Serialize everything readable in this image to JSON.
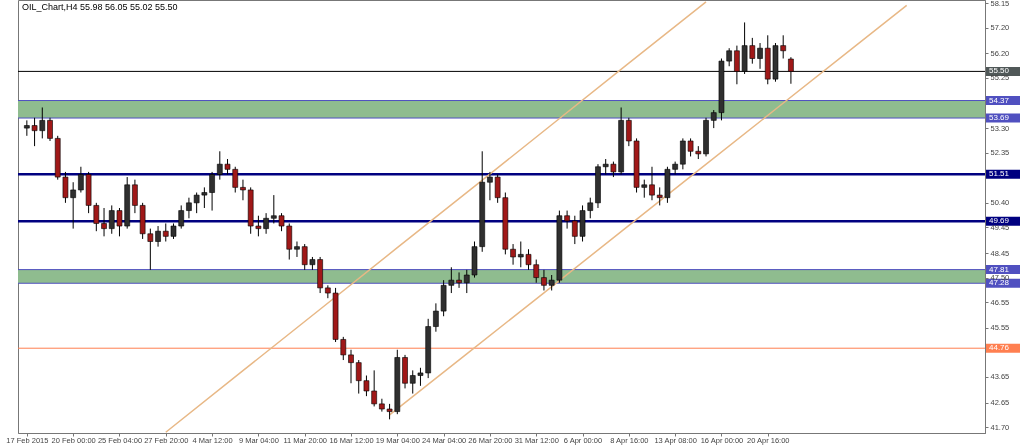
{
  "chart_data": {
    "type": "candlestick",
    "title": "OIL_Chart,H4  55.98 56.05 55.02 55.50",
    "categories": [
      "17 Feb 2015",
      null,
      null,
      null,
      null,
      null,
      "20 Feb 00:00",
      null,
      null,
      null,
      null,
      null,
      "25 Feb 04:00",
      null,
      null,
      null,
      null,
      null,
      "27 Feb 20:00",
      null,
      null,
      null,
      null,
      null,
      "4 Mar 12:00",
      null,
      null,
      null,
      null,
      null,
      "9 Mar 04:00",
      null,
      null,
      null,
      null,
      null,
      "11 Mar 20:00",
      null,
      null,
      null,
      null,
      null,
      "16 Mar 12:00",
      null,
      null,
      null,
      null,
      null,
      "19 Mar 04:00",
      null,
      null,
      null,
      null,
      null,
      "24 Mar 04:00",
      null,
      null,
      null,
      null,
      null,
      "26 Mar 20:00",
      null,
      null,
      null,
      null,
      null,
      "31 Mar 12:00",
      null,
      null,
      null,
      null,
      null,
      "6 Apr 00:00",
      null,
      null,
      null,
      null,
      null,
      "8 Apr 16:00",
      null,
      null,
      null,
      null,
      null,
      "13 Apr 08:00",
      null,
      null,
      null,
      null,
      null,
      "16 Apr 00:00",
      null,
      null,
      null,
      null,
      null,
      "20 Apr 16:00",
      null,
      null,
      null,
      null,
      null,
      null,
      null,
      null,
      null,
      null,
      null,
      null,
      null,
      null,
      null,
      null,
      null,
      null,
      null,
      null,
      null,
      null,
      null,
      null,
      null,
      null,
      null
    ],
    "ohlc": [
      [
        53.3,
        53.6,
        53.0,
        53.4
      ],
      [
        53.4,
        53.7,
        52.6,
        53.2
      ],
      [
        53.2,
        54.1,
        52.9,
        53.6
      ],
      [
        53.6,
        53.7,
        52.8,
        52.9
      ],
      [
        52.9,
        53.0,
        51.3,
        51.4
      ],
      [
        51.4,
        51.6,
        50.4,
        50.6
      ],
      [
        50.6,
        51.2,
        49.4,
        50.9
      ],
      [
        50.9,
        51.8,
        50.8,
        51.5
      ],
      [
        51.5,
        51.6,
        50.0,
        50.3
      ],
      [
        50.3,
        50.4,
        49.3,
        49.6
      ],
      [
        49.6,
        50.2,
        49.1,
        49.4
      ],
      [
        49.4,
        50.3,
        49.2,
        50.1
      ],
      [
        50.1,
        50.2,
        49.1,
        49.5
      ],
      [
        49.5,
        51.4,
        49.4,
        51.1
      ],
      [
        51.1,
        51.3,
        50.0,
        50.3
      ],
      [
        50.3,
        50.4,
        49.0,
        49.2
      ],
      [
        49.2,
        49.4,
        47.8,
        48.9
      ],
      [
        48.9,
        49.5,
        48.7,
        49.3
      ],
      [
        49.3,
        49.6,
        48.9,
        49.1
      ],
      [
        49.1,
        49.6,
        49.0,
        49.5
      ],
      [
        49.5,
        50.3,
        49.4,
        50.1
      ],
      [
        50.1,
        50.6,
        49.8,
        50.4
      ],
      [
        50.4,
        50.8,
        50.0,
        50.7
      ],
      [
        50.7,
        51.0,
        50.2,
        50.8
      ],
      [
        50.8,
        51.6,
        50.1,
        51.5
      ],
      [
        51.5,
        52.4,
        51.3,
        51.9
      ],
      [
        51.9,
        52.1,
        51.5,
        51.7
      ],
      [
        51.7,
        51.8,
        50.8,
        51.0
      ],
      [
        51.0,
        51.3,
        50.5,
        50.9
      ],
      [
        50.9,
        51.0,
        49.2,
        49.5
      ],
      [
        49.5,
        49.9,
        49.1,
        49.4
      ],
      [
        49.4,
        50.0,
        49.2,
        49.8
      ],
      [
        49.8,
        50.7,
        49.6,
        49.9
      ],
      [
        49.9,
        50.0,
        49.3,
        49.5
      ],
      [
        49.5,
        49.6,
        48.2,
        48.6
      ],
      [
        48.6,
        48.9,
        48.3,
        48.7
      ],
      [
        48.7,
        48.8,
        47.8,
        48.0
      ],
      [
        48.0,
        48.3,
        47.8,
        48.2
      ],
      [
        48.2,
        48.3,
        46.9,
        47.1
      ],
      [
        47.1,
        47.2,
        46.7,
        46.9
      ],
      [
        46.9,
        47.1,
        45.0,
        45.1
      ],
      [
        45.1,
        45.2,
        44.3,
        44.5
      ],
      [
        44.5,
        44.7,
        43.4,
        44.2
      ],
      [
        44.2,
        44.3,
        43.0,
        43.5
      ],
      [
        43.5,
        43.7,
        42.9,
        43.1
      ],
      [
        43.1,
        43.9,
        42.5,
        42.6
      ],
      [
        42.6,
        42.8,
        42.3,
        42.4
      ],
      [
        42.4,
        42.6,
        42.0,
        42.3
      ],
      [
        42.3,
        44.7,
        42.2,
        44.4
      ],
      [
        44.4,
        44.5,
        43.2,
        43.4
      ],
      [
        43.4,
        43.9,
        43.0,
        43.7
      ],
      [
        43.7,
        44.0,
        43.3,
        43.8
      ],
      [
        43.8,
        45.9,
        43.6,
        45.6
      ],
      [
        45.6,
        46.5,
        45.4,
        46.2
      ],
      [
        46.2,
        47.4,
        46.0,
        47.2
      ],
      [
        47.2,
        47.9,
        46.9,
        47.4
      ],
      [
        47.4,
        47.7,
        47.1,
        47.3
      ],
      [
        47.3,
        47.8,
        46.9,
        47.6
      ],
      [
        47.6,
        48.9,
        47.5,
        48.7
      ],
      [
        48.7,
        52.4,
        48.5,
        51.2
      ],
      [
        51.2,
        51.6,
        50.5,
        51.4
      ],
      [
        51.4,
        51.5,
        50.4,
        50.6
      ],
      [
        50.6,
        50.8,
        48.4,
        48.6
      ],
      [
        48.6,
        48.8,
        48.0,
        48.3
      ],
      [
        48.3,
        48.9,
        47.9,
        48.4
      ],
      [
        48.4,
        48.6,
        47.8,
        48.0
      ],
      [
        48.0,
        48.2,
        47.3,
        47.5
      ],
      [
        47.5,
        47.8,
        47.0,
        47.2
      ],
      [
        47.2,
        47.6,
        47.0,
        47.4
      ],
      [
        47.4,
        50.1,
        47.3,
        49.9
      ],
      [
        49.9,
        50.1,
        49.4,
        49.7
      ],
      [
        49.7,
        49.9,
        48.8,
        49.1
      ],
      [
        49.1,
        50.3,
        48.9,
        50.1
      ],
      [
        50.1,
        50.6,
        49.8,
        50.4
      ],
      [
        50.4,
        51.9,
        50.2,
        51.8
      ],
      [
        51.8,
        52.1,
        51.5,
        51.9
      ],
      [
        51.9,
        52.0,
        51.4,
        51.6
      ],
      [
        51.6,
        54.1,
        51.5,
        53.6
      ],
      [
        53.6,
        53.7,
        52.6,
        52.8
      ],
      [
        52.8,
        52.9,
        50.8,
        51.0
      ],
      [
        51.0,
        51.3,
        50.6,
        51.1
      ],
      [
        51.1,
        51.8,
        50.5,
        50.7
      ],
      [
        50.7,
        51.0,
        50.3,
        50.6
      ],
      [
        50.6,
        51.8,
        50.4,
        51.7
      ],
      [
        51.7,
        52.0,
        51.5,
        51.9
      ],
      [
        51.9,
        52.9,
        51.7,
        52.8
      ],
      [
        52.8,
        52.9,
        52.2,
        52.4
      ],
      [
        52.4,
        52.6,
        52.1,
        52.3
      ],
      [
        52.3,
        53.7,
        52.2,
        53.6
      ],
      [
        53.6,
        54.0,
        53.3,
        53.9
      ],
      [
        53.9,
        56.0,
        53.6,
        55.9
      ],
      [
        55.9,
        56.4,
        55.7,
        56.3
      ],
      [
        56.3,
        56.5,
        55.0,
        55.5
      ],
      [
        55.5,
        57.4,
        55.4,
        56.5
      ],
      [
        56.5,
        56.8,
        55.8,
        56.0
      ],
      [
        56.0,
        56.6,
        55.6,
        56.4
      ],
      [
        56.4,
        56.9,
        55.0,
        55.2
      ],
      [
        55.2,
        56.6,
        55.1,
        56.5
      ],
      [
        56.5,
        56.9,
        56.0,
        56.3
      ],
      [
        55.98,
        56.05,
        55.02,
        55.5
      ],
      null,
      null,
      null,
      null,
      null,
      null,
      null,
      null,
      null,
      null,
      null,
      null,
      null,
      null,
      null,
      null,
      null,
      null,
      null,
      null,
      null,
      null,
      null,
      null
    ],
    "colors": [
      "#2f2f2f",
      "#a01818",
      "#2f2f2f",
      "#a01818",
      "#a01818",
      "#a01818",
      "#2f2f2f",
      "#2f2f2f",
      "#a01818",
      "#a01818",
      "#a01818",
      "#2f2f2f",
      "#a01818",
      "#2f2f2f",
      "#a01818",
      "#a01818",
      "#a01818",
      "#2f2f2f",
      "#a01818",
      "#2f2f2f",
      "#2f2f2f",
      "#2f2f2f",
      "#2f2f2f",
      "#2f2f2f",
      "#2f2f2f",
      "#2f2f2f",
      "#a01818",
      "#a01818",
      "#a01818",
      "#a01818",
      "#a01818",
      "#2f2f2f",
      "#2f2f2f",
      "#a01818",
      "#a01818",
      "#2f2f2f",
      "#a01818",
      "#2f2f2f",
      "#a01818",
      "#a01818",
      "#a01818",
      "#a01818",
      "#a01818",
      "#a01818",
      "#a01818",
      "#a01818",
      "#a01818",
      "#a01818",
      "#2f2f2f",
      "#a01818",
      "#2f2f2f",
      "#2f2f2f",
      "#2f2f2f",
      "#2f2f2f",
      "#2f2f2f",
      "#2f2f2f",
      "#a01818",
      "#2f2f2f",
      "#2f2f2f",
      "#2f2f2f",
      "#2f2f2f",
      "#a01818",
      "#a01818",
      "#a01818",
      "#2f2f2f",
      "#a01818",
      "#a01818",
      "#a01818",
      "#2f2f2f",
      "#2f2f2f",
      "#a01818",
      "#a01818",
      "#2f2f2f",
      "#2f2f2f",
      "#2f2f2f",
      "#2f2f2f",
      "#a01818",
      "#2f2f2f",
      "#a01818",
      "#a01818",
      "#2f2f2f",
      "#a01818",
      "#a01818",
      "#2f2f2f",
      "#2f2f2f",
      "#2f2f2f",
      "#a01818",
      "#a01818",
      "#2f2f2f",
      "#2f2f2f",
      "#2f2f2f",
      "#2f2f2f",
      "#a01818",
      "#2f2f2f",
      "#a01818",
      "#2f2f2f",
      "#a01818",
      "#2f2f2f",
      "#a01818",
      "#a01818",
      null,
      null,
      null,
      null,
      null,
      null,
      null,
      null,
      null,
      null,
      null,
      null,
      null,
      null,
      null,
      null,
      null,
      null,
      null,
      null,
      null,
      null,
      null,
      null
    ],
    "series": [
      {
        "type": "line",
        "color": "#e8b886",
        "values": [
          null,
          null,
          null,
          null,
          null,
          null,
          null,
          null,
          null,
          null,
          null,
          null,
          null,
          null,
          null,
          null,
          null,
          null,
          41.5,
          null,
          null,
          null,
          null,
          null,
          null,
          null,
          null,
          null,
          43.89,
          null,
          null,
          null,
          null,
          null,
          null,
          null,
          null,
          null,
          46.27,
          null,
          null,
          null,
          null,
          null,
          null,
          null,
          null,
          null,
          48.66,
          null,
          null,
          null,
          null,
          null,
          null,
          null,
          null,
          null,
          51.04,
          null,
          null,
          null,
          null,
          null,
          null,
          null,
          null,
          null,
          53.43,
          null,
          null,
          null,
          null,
          null,
          null,
          null,
          null,
          null,
          55.82,
          null,
          null,
          null,
          null,
          null,
          null,
          null,
          null,
          null,
          58.2,
          null,
          null,
          null,
          null,
          null,
          null,
          null,
          null,
          null,
          null,
          null,
          null,
          null,
          null,
          null,
          null,
          null,
          null,
          null,
          null,
          null,
          null,
          null,
          null,
          null,
          null,
          null,
          null,
          null,
          null,
          null,
          null,
          null,
          null,
          null
        ]
      },
      {
        "type": "line",
        "color": "#e8b886",
        "values": [
          null,
          null,
          null,
          null,
          null,
          null,
          null,
          null,
          null,
          null,
          null,
          null,
          null,
          null,
          null,
          null,
          null,
          null,
          null,
          null,
          null,
          null,
          null,
          null,
          null,
          null,
          null,
          null,
          null,
          null,
          null,
          null,
          null,
          null,
          null,
          null,
          null,
          null,
          null,
          null,
          null,
          null,
          null,
          null,
          null,
          null,
          null,
          42.17,
          null,
          null,
          null,
          null,
          null,
          null,
          null,
          null,
          null,
          44.54,
          null,
          null,
          null,
          null,
          null,
          null,
          null,
          null,
          null,
          46.91,
          null,
          null,
          null,
          null,
          null,
          null,
          null,
          null,
          null,
          49.28,
          null,
          null,
          null,
          null,
          null,
          null,
          null,
          null,
          null,
          51.66,
          null,
          null,
          null,
          null,
          null,
          null,
          null,
          null,
          null,
          54.03,
          null,
          null,
          null,
          null,
          null,
          null,
          null,
          null,
          null,
          56.4,
          null,
          null,
          null,
          null,
          null,
          null,
          58.06,
          null,
          null,
          null,
          null,
          null,
          null,
          null,
          null,
          null
        ]
      }
    ],
    "ylim": [
      41.47,
      58.27
    ],
    "yticks": [
      {
        "value": 41.7,
        "label": "41.70"
      },
      42.65,
      43.65,
      45.55,
      46.55,
      {
        "value": 47.5,
        "label": "47.50"
      },
      48.45,
      49.45,
      {
        "value": 50.4,
        "label": "50.40"
      },
      52.35,
      {
        "value": 53.3,
        "label": "53.30"
      },
      55.25,
      {
        "value": 56.2,
        "label": "56.20"
      },
      {
        "value": 57.2,
        "label": "57.20"
      },
      58.15
    ],
    "ref_lines": [
      {
        "axis": "y",
        "value": 55.5,
        "label": "55.50",
        "color": "#000000"
      },
      {
        "axis": "y",
        "value": 54.37,
        "label": "54.37",
        "color": "#5050c0"
      },
      {
        "axis": "y",
        "value": 53.69,
        "label": "53.69",
        "color": "#5050c0"
      },
      {
        "axis": "y",
        "value": 51.51,
        "label": "51.51",
        "color": "#000080"
      },
      {
        "axis": "y",
        "value": 49.69,
        "label": "49.69",
        "color": "#000080"
      },
      {
        "axis": "y",
        "value": 47.81,
        "label": "47.81",
        "color": "#5050c0"
      },
      {
        "axis": "y",
        "value": 47.28,
        "label": "47.28",
        "color": "#5050c0"
      },
      {
        "axis": "y",
        "value": 44.76,
        "label": "44.76",
        "color": "#ff7f50"
      }
    ],
    "bands": [
      {
        "axis": "y",
        "from": 53.69,
        "to": 54.37,
        "color": "#8fbc8f"
      },
      {
        "axis": "y",
        "from": 47.28,
        "to": 47.81,
        "color": "#8fbc8f"
      }
    ],
    "grid": false,
    "legend": false
  }
}
